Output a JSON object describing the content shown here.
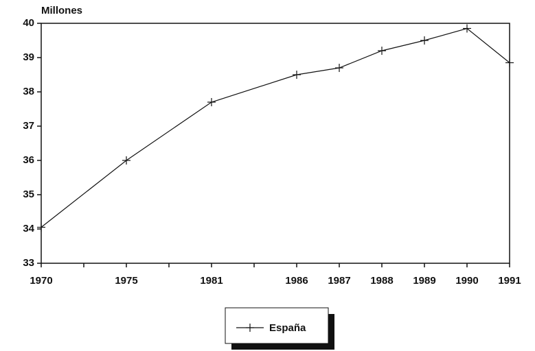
{
  "chart_data": {
    "type": "line",
    "y_label": "Millones",
    "categories": [
      "1970",
      "1975",
      "1981",
      "1986",
      "1987",
      "1988",
      "1989",
      "1990",
      "1991"
    ],
    "series": [
      {
        "name": "España",
        "color": "#111111",
        "values": [
          34.05,
          36.0,
          37.7,
          38.5,
          38.7,
          39.2,
          39.5,
          39.85,
          38.85
        ]
      }
    ],
    "ylim": [
      33,
      40
    ],
    "yticks": [
      33,
      34,
      35,
      36,
      37,
      38,
      39,
      40
    ],
    "grid": false,
    "legend": "bottom"
  }
}
